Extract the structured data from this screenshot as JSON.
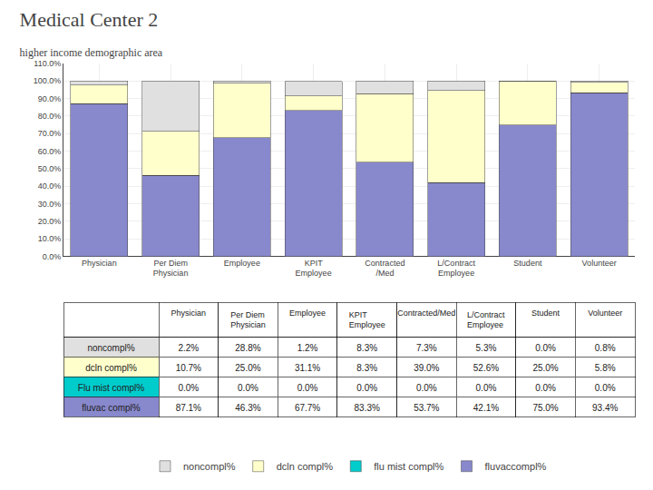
{
  "chart_data": {
    "type": "bar",
    "title": "Medical Center 2",
    "subtitle": "higher income demographic area",
    "categories": [
      "Physician",
      "Per Diem\nPhysician",
      "Employee",
      "KPIT\nEmployee",
      "Contracted\n/Med",
      "L/Contract\nEmployee",
      "Student",
      "Volunteer"
    ],
    "series": [
      {
        "name": "fluvaccompl%",
        "color": "#8888cc",
        "values": [
          87.1,
          46.3,
          67.7,
          83.3,
          53.7,
          42.1,
          75.0,
          93.4
        ]
      },
      {
        "name": "flu mist compl%",
        "color": "#00cccc",
        "values": [
          0.0,
          0.0,
          0.0,
          0.0,
          0.0,
          0.0,
          0.0,
          0.0
        ]
      },
      {
        "name": "dcln compl%",
        "color": "#ffffcc",
        "values": [
          10.7,
          25.0,
          31.1,
          8.3,
          39.0,
          52.6,
          25.0,
          5.8
        ]
      },
      {
        "name": "noncompl%",
        "color": "#e0e0e0",
        "values": [
          2.2,
          28.8,
          1.2,
          8.3,
          7.3,
          5.3,
          0.0,
          0.8
        ]
      }
    ],
    "stacked": true,
    "ylim": [
      0,
      110
    ],
    "yticks": [
      {
        "value": 0,
        "label": "0.0%"
      },
      {
        "value": 10,
        "label": "10.0%"
      },
      {
        "value": 20,
        "label": "20.0%"
      },
      {
        "value": 30,
        "label": "30.0%"
      },
      {
        "value": 40,
        "label": "40.0%"
      },
      {
        "value": 50,
        "label": "50.0%"
      },
      {
        "value": 60,
        "label": "60.0%"
      },
      {
        "value": 70,
        "label": "70.0%"
      },
      {
        "value": 80,
        "label": "80.0%"
      },
      {
        "value": 90,
        "label": "90.0%"
      },
      {
        "value": 100,
        "label": "100.0%"
      },
      {
        "value": 110,
        "label": "110.0%"
      }
    ],
    "grid": true,
    "legend": "bottom",
    "table": {
      "header": [
        "Physician",
        "Per Diem Physician",
        "Employee",
        "KPIT Employee",
        "Contracted/Med",
        "L/Contract Employee",
        "Student",
        "Volunteer"
      ],
      "rows": [
        {
          "label": "noncompl%",
          "color": "#e0e0e0",
          "values": [
            2.2,
            28.8,
            1.2,
            8.3,
            7.3,
            5.3,
            0.0,
            0.8
          ],
          "value_labels": [
            "2.2%",
            "28.8%",
            "1.2%",
            "8.3%",
            "7.3%",
            "5.3%",
            "0.0%",
            "0.8%"
          ]
        },
        {
          "label": "dcln compl%",
          "color": "#ffffcc",
          "values": [
            10.7,
            25.0,
            31.1,
            8.3,
            39.0,
            52.6,
            25.0,
            5.8
          ],
          "value_labels": [
            "10.7%",
            "25.0%",
            "31.1%",
            "8.3%",
            "39.0%",
            "52.6%",
            "25.0%",
            "5.8%"
          ]
        },
        {
          "label": "Flu mist compl%",
          "color": "#00cccc",
          "values": [
            0.0,
            0.0,
            0.0,
            0.0,
            0.0,
            0.0,
            0.0,
            0.0
          ],
          "value_labels": [
            "0.0%",
            "0.0%",
            "0.0%",
            "0.0%",
            "0.0%",
            "0.0%",
            "0.0%",
            "0.0%"
          ]
        },
        {
          "label": "fluvac compl%",
          "color": "#8888cc",
          "values": [
            87.1,
            46.3,
            67.7,
            83.3,
            53.7,
            42.1,
            75.0,
            93.4
          ],
          "value_labels": [
            "87.1%",
            "46.3%",
            "67.7%",
            "83.3%",
            "53.7%",
            "42.1%",
            "75.0%",
            "93.4%"
          ]
        }
      ]
    }
  }
}
